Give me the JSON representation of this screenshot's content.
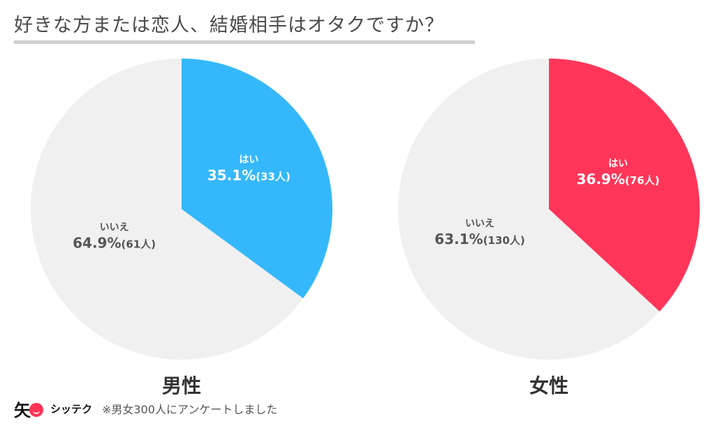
{
  "title": "好きな方または恋人、結婚相手はオタクですか？",
  "footer": {
    "logo_kanji": "矢",
    "logo_text": "シッテク",
    "note": "※男女300人にアンケートしました"
  },
  "colors": {
    "no": "#f0f0f0",
    "male_yes": "#35b8fb",
    "female_yes": "#ff3659",
    "label_dark": "#555555",
    "label_light": "#ffffff"
  },
  "chart_data": [
    {
      "type": "pie",
      "title": "男性",
      "slices": [
        {
          "label": "はい",
          "percent": 35.1,
          "percent_text": "35.1%",
          "count_text": "(33人)"
        },
        {
          "label": "いいえ",
          "percent": 64.9,
          "percent_text": "64.9%",
          "count_text": "(61人)"
        }
      ]
    },
    {
      "type": "pie",
      "title": "女性",
      "slices": [
        {
          "label": "はい",
          "percent": 36.9,
          "percent_text": "36.9%",
          "count_text": "(76人)"
        },
        {
          "label": "いいえ",
          "percent": 63.1,
          "percent_text": "63.1%",
          "count_text": "(130人)"
        }
      ]
    }
  ]
}
